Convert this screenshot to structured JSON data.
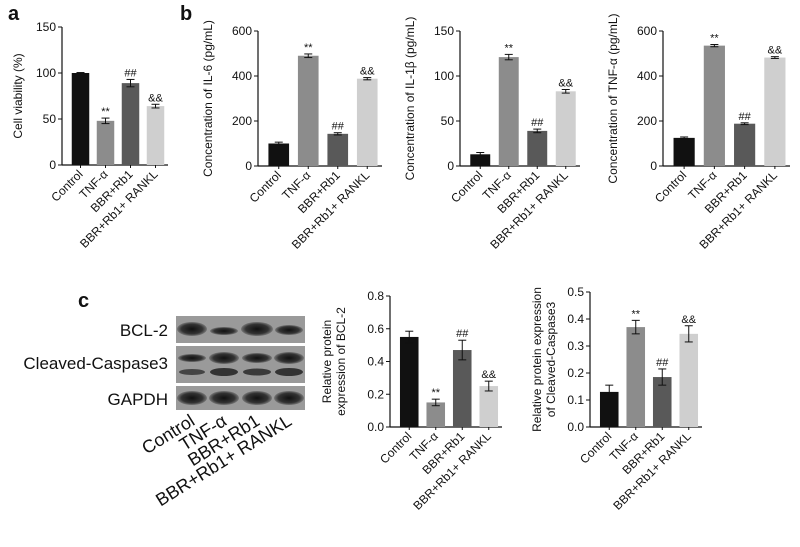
{
  "chart_data": [
    {
      "type": "bar",
      "panel": "a",
      "ylabel": [
        "Cell viability (%)"
      ],
      "categories": [
        "Control",
        "TNF-α",
        "BBR+Rb1",
        "BBR+Rb1+ RANKL"
      ],
      "values": [
        100,
        48,
        89,
        64
      ],
      "errors": [
        0.5,
        3,
        4,
        2
      ],
      "annotations": [
        null,
        "**",
        "##",
        "&&"
      ],
      "colors": [
        "#111111",
        "#8c8c8c",
        "#595959",
        "#cfcfcf"
      ],
      "ylim": [
        0,
        150
      ],
      "yticks": [
        0,
        50,
        100,
        150
      ]
    },
    {
      "type": "bar",
      "panel": "b",
      "ylabel": [
        "Concentration of IL-6 (pg/mL)"
      ],
      "categories": [
        "Control",
        "TNF-α",
        "BBR+Rb1",
        "BBR+Rb1+ RANKL"
      ],
      "values": [
        100,
        490,
        143,
        388
      ],
      "errors": [
        6,
        8,
        5,
        5
      ],
      "annotations": [
        null,
        "**",
        "##",
        "&&"
      ],
      "colors": [
        "#111111",
        "#8c8c8c",
        "#595959",
        "#cfcfcf"
      ],
      "ylim": [
        0,
        600
      ],
      "yticks": [
        0,
        200,
        400,
        600
      ]
    },
    {
      "type": "bar",
      "ylabel": [
        "Concentration of IL-1β (pg/mL)"
      ],
      "categories": [
        "Control",
        "TNF-α",
        "BBR+Rb1",
        "BBR+Rb1+ RANKL"
      ],
      "values": [
        13,
        121,
        39,
        83
      ],
      "errors": [
        2,
        3,
        2,
        2
      ],
      "annotations": [
        null,
        "**",
        "##",
        "&&"
      ],
      "colors": [
        "#111111",
        "#8c8c8c",
        "#595959",
        "#cfcfcf"
      ],
      "ylim": [
        0,
        150
      ],
      "yticks": [
        0,
        50,
        100,
        150
      ]
    },
    {
      "type": "bar",
      "ylabel": [
        "Concentration of TNF-α (pg/mL)"
      ],
      "categories": [
        "Control",
        "TNF-α",
        "BBR+Rb1",
        "BBR+Rb1+ RANKL"
      ],
      "values": [
        125,
        535,
        188,
        482
      ],
      "errors": [
        4,
        5,
        4,
        4
      ],
      "annotations": [
        null,
        "**",
        "##",
        "&&"
      ],
      "colors": [
        "#111111",
        "#8c8c8c",
        "#595959",
        "#cfcfcf"
      ],
      "ylim": [
        0,
        600
      ],
      "yticks": [
        0,
        200,
        400,
        600
      ]
    },
    {
      "type": "blot",
      "panel": "c",
      "rows": [
        "BCL-2",
        "Cleaved-Caspase3",
        "GAPDH"
      ],
      "categories": [
        "Control",
        "TNF-α",
        "BBR+Rb1",
        "BBR+Rb1+ RANKL"
      ]
    },
    {
      "type": "bar",
      "ylabel": [
        "Relative protein",
        "expression of BCL-2"
      ],
      "categories": [
        "Control",
        "TNF-α",
        "BBR+Rb1",
        "BBR+Rb1+ RANKL"
      ],
      "values": [
        0.55,
        0.15,
        0.47,
        0.25
      ],
      "errors": [
        0.035,
        0.02,
        0.06,
        0.03
      ],
      "annotations": [
        null,
        "**",
        "##",
        "&&"
      ],
      "colors": [
        "#111111",
        "#8c8c8c",
        "#595959",
        "#cfcfcf"
      ],
      "ylim": [
        0,
        0.8
      ],
      "yticks": [
        {
          "value": 0,
          "label": "0.0"
        },
        0.2,
        0.4,
        0.6,
        0.8
      ]
    },
    {
      "type": "bar",
      "ylabel": [
        "Relative protein expression",
        "of Cleaved-Caspase3"
      ],
      "categories": [
        "Control",
        "TNF-α",
        "BBR+Rb1",
        "BBR+Rb1+ RANKL"
      ],
      "values": [
        0.13,
        0.37,
        0.185,
        0.345
      ],
      "errors": [
        0.025,
        0.025,
        0.03,
        0.03
      ],
      "annotations": [
        null,
        "**",
        "##",
        "&&"
      ],
      "colors": [
        "#111111",
        "#8c8c8c",
        "#595959",
        "#cfcfcf"
      ],
      "ylim": [
        0,
        0.5
      ],
      "yticks": [
        {
          "value": 0,
          "label": "0.0"
        },
        0.1,
        0.2,
        0.3,
        0.4,
        0.5
      ]
    }
  ]
}
